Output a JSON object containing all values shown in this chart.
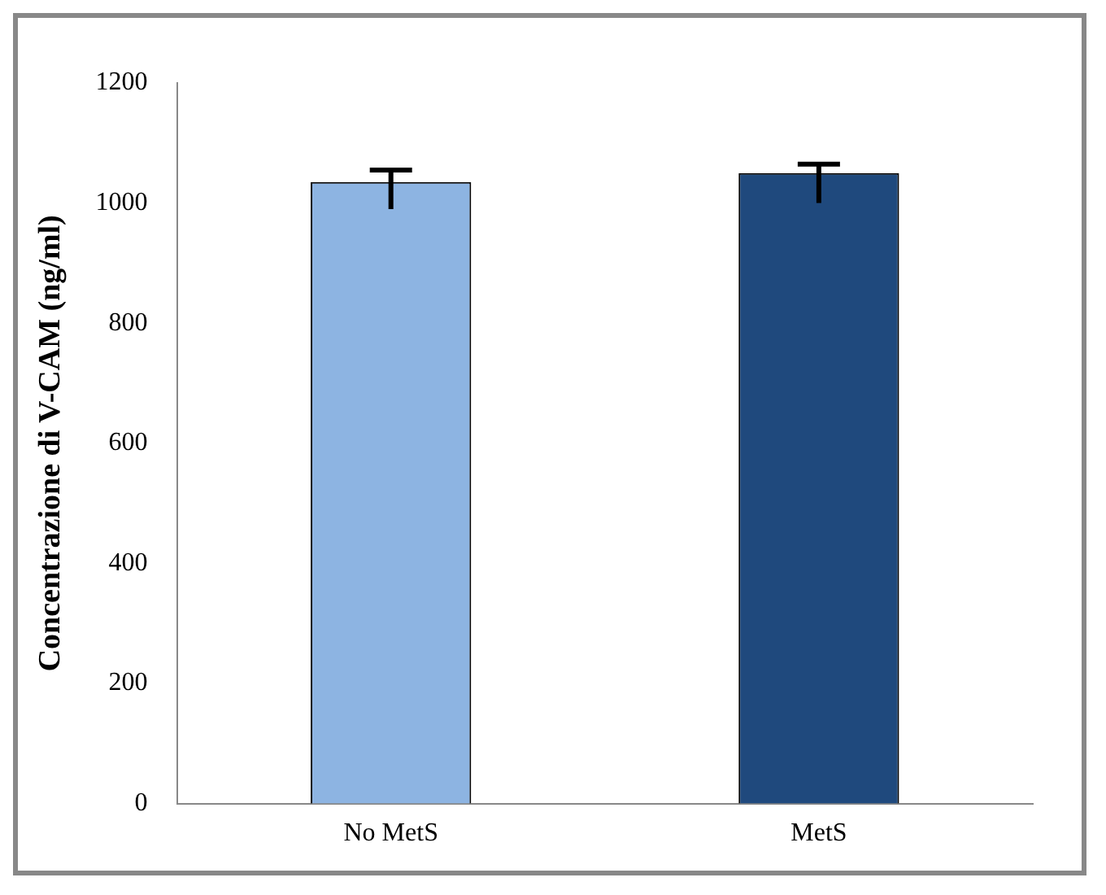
{
  "chart_data": {
    "type": "bar",
    "ylabel": "Concentrazione di V-CAM (ng/ml)",
    "categories": [
      "No MetS",
      "MetS"
    ],
    "values": [
      1035,
      1050
    ],
    "colors": [
      "#8db4e2",
      "#1f497d"
    ],
    "errors": [
      [
        990,
        1055
      ],
      [
        1000,
        1065
      ]
    ],
    "ylim": [
      0,
      1200
    ],
    "yticks": [
      0,
      200,
      400,
      600,
      800,
      1000,
      1200
    ],
    "grid": false,
    "legend": false
  }
}
